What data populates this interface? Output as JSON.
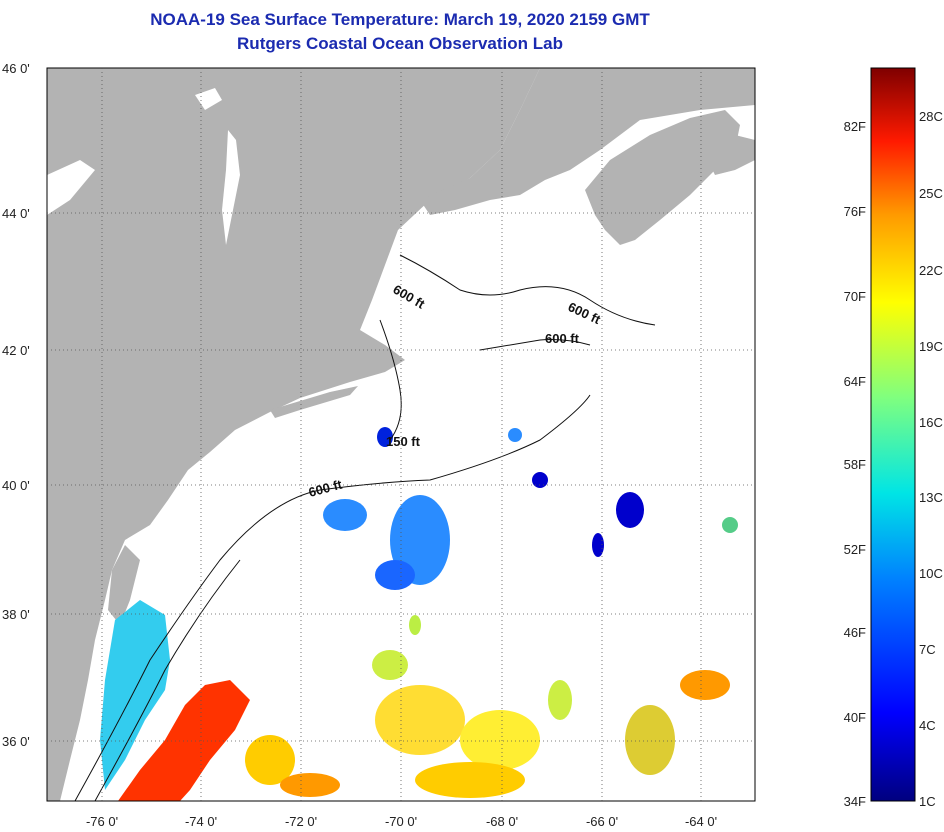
{
  "title": "NOAA-19 Sea Surface Temperature:  March 19, 2020 2159 GMT",
  "subtitle": "Rutgers Coastal Ocean Observation Lab",
  "map": {
    "lon_range": [
      -76.5,
      -63.0
    ],
    "lat_range": [
      35.0,
      46.0
    ],
    "lat_labels": [
      "46 0'",
      "44 0'",
      "42 0'",
      "40 0'",
      "38 0'",
      "36 0'"
    ],
    "lon_labels": [
      "-76 0'",
      "-74 0'",
      "-72 0'",
      "-70 0'",
      "-68 0'",
      "-66 0'",
      "-64 0'"
    ],
    "land_color": "#b3b3b3",
    "ocean_color": "#ffffff",
    "contour_labels": [
      "600 ft",
      "600 ft",
      "600 ft",
      "150 ft",
      "600 ft"
    ]
  },
  "colorbar": {
    "f_labels": [
      "82F",
      "76F",
      "70F",
      "64F",
      "58F",
      "52F",
      "46F",
      "40F",
      "34F"
    ],
    "c_labels": [
      "28C",
      "25C",
      "22C",
      "19C",
      "16C",
      "13C",
      "10C",
      "7C",
      "4C",
      "1C"
    ],
    "stops": [
      "#00007f",
      "#0000ff",
      "#007fff",
      "#00ffff",
      "#7fff7f",
      "#ffff00",
      "#ff7f00",
      "#ff0000",
      "#7f0000"
    ]
  }
}
